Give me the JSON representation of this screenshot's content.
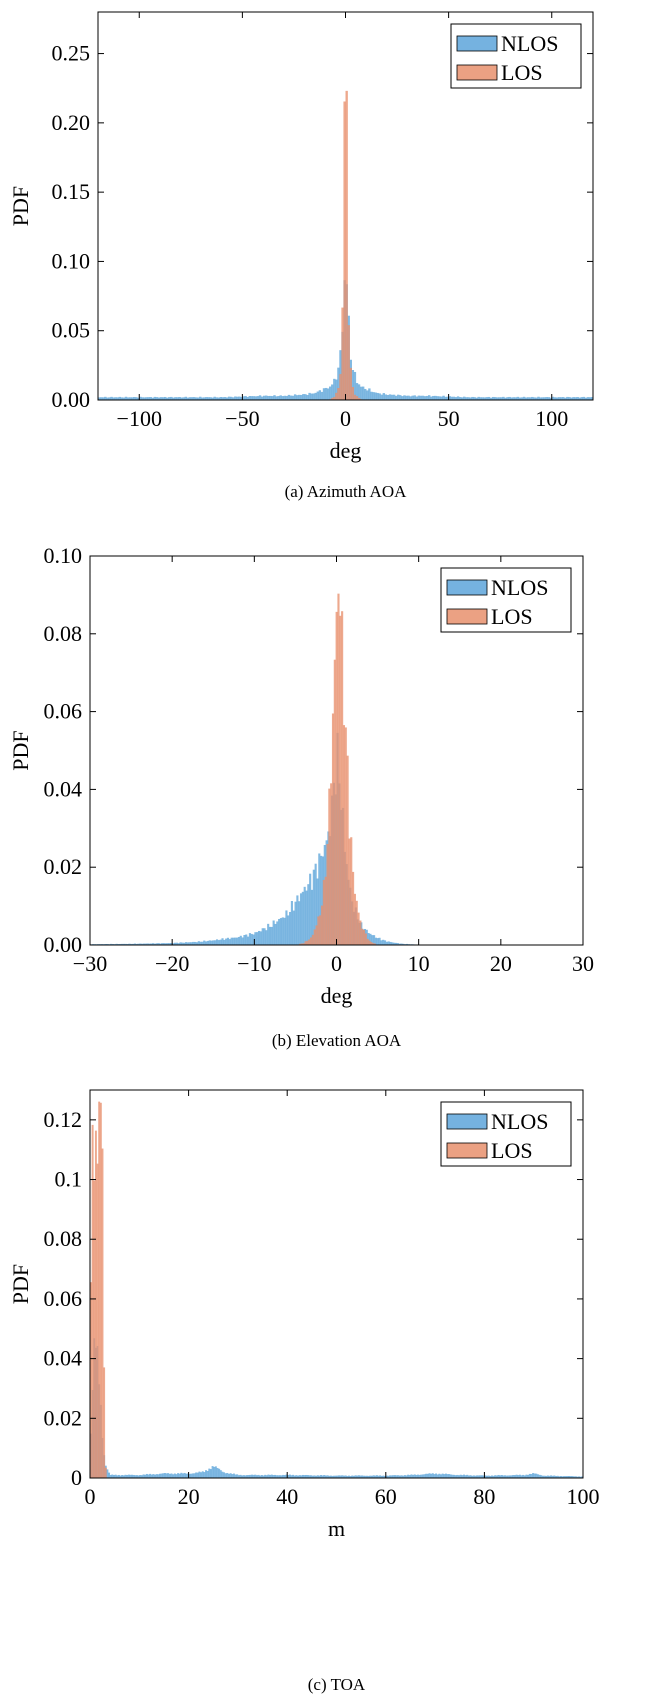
{
  "chart_data": [
    {
      "type": "bar",
      "subtype": "histogram",
      "caption": "(a) Azimuth AOA",
      "title": "",
      "xlabel": "deg",
      "ylabel": "PDF",
      "xlim": [
        -120,
        120
      ],
      "ylim": [
        0,
        0.28
      ],
      "xticks": [
        "−100",
        "−50",
        "0",
        "50",
        "100"
      ],
      "yticks": [
        "0.00",
        "0.05",
        "0.10",
        "0.15",
        "0.20",
        "0.25"
      ],
      "legend": {
        "position": "top-right",
        "entries": [
          "NLOS",
          "LOS"
        ]
      },
      "colors": {
        "NLOS": "#5da5da",
        "LOS": "#e8906d"
      },
      "series": [
        {
          "name": "NLOS",
          "x": [
            -120,
            -100,
            -80,
            -60,
            -40,
            -30,
            -20,
            -15,
            -10,
            -7,
            -5,
            -3,
            -2,
            -1,
            0,
            1,
            2,
            3,
            5,
            7,
            10,
            15,
            20,
            30,
            40,
            60,
            80,
            100,
            120
          ],
          "y": [
            0.002,
            0.002,
            0.002,
            0.002,
            0.003,
            0.003,
            0.004,
            0.005,
            0.008,
            0.01,
            0.015,
            0.025,
            0.04,
            0.07,
            0.1,
            0.07,
            0.04,
            0.025,
            0.015,
            0.01,
            0.008,
            0.005,
            0.004,
            0.003,
            0.003,
            0.002,
            0.002,
            0.002,
            0.002
          ]
        },
        {
          "name": "LOS",
          "x": [
            -8,
            -5,
            -4,
            -3,
            -2,
            -1.5,
            -1,
            -0.5,
            0,
            0.5,
            1,
            1.5,
            2,
            3,
            4,
            5,
            8
          ],
          "y": [
            0.0,
            0.003,
            0.006,
            0.012,
            0.03,
            0.06,
            0.12,
            0.22,
            0.255,
            0.22,
            0.12,
            0.06,
            0.03,
            0.012,
            0.006,
            0.003,
            0.0
          ]
        }
      ]
    },
    {
      "type": "bar",
      "subtype": "histogram",
      "caption": "(b) Elevation AOA",
      "title": "",
      "xlabel": "deg",
      "ylabel": "PDF",
      "xlim": [
        -30,
        30
      ],
      "ylim": [
        0,
        0.1
      ],
      "xticks": [
        "−30",
        "−20",
        "−10",
        "0",
        "10",
        "20",
        "30"
      ],
      "yticks": [
        "0.00",
        "0.02",
        "0.04",
        "0.06",
        "0.08",
        "0.10"
      ],
      "legend": {
        "position": "top-right",
        "entries": [
          "NLOS",
          "LOS"
        ]
      },
      "colors": {
        "NLOS": "#5da5da",
        "LOS": "#e8906d"
      },
      "series": [
        {
          "name": "NLOS",
          "x": [
            -30,
            -25,
            -20,
            -17,
            -15,
            -12,
            -10,
            -8,
            -6,
            -5,
            -4,
            -3,
            -2,
            -1,
            -0.5,
            0,
            0.5,
            1,
            1.5,
            2,
            3,
            4,
            5,
            6,
            7,
            8,
            10,
            15,
            20,
            30
          ],
          "y": [
            0.0002,
            0.0003,
            0.0005,
            0.0008,
            0.0012,
            0.002,
            0.003,
            0.005,
            0.008,
            0.011,
            0.014,
            0.017,
            0.022,
            0.028,
            0.036,
            0.049,
            0.04,
            0.025,
            0.016,
            0.01,
            0.005,
            0.003,
            0.0018,
            0.001,
            0.0006,
            0.0003,
            0.0001,
            0.0,
            0.0,
            0.0
          ]
        },
        {
          "name": "LOS",
          "x": [
            -5,
            -4,
            -3,
            -2,
            -1.5,
            -1,
            -0.5,
            0,
            0.2,
            0.5,
            1,
            1.5,
            2,
            2.5,
            3,
            4,
            5
          ],
          "y": [
            0.0,
            0.0005,
            0.002,
            0.008,
            0.015,
            0.03,
            0.055,
            0.085,
            0.094,
            0.085,
            0.06,
            0.035,
            0.018,
            0.01,
            0.005,
            0.001,
            0.0
          ]
        }
      ]
    },
    {
      "type": "bar",
      "subtype": "histogram",
      "caption": "(c) TOA",
      "title": "",
      "xlabel": "m",
      "ylabel": "PDF",
      "xlim": [
        0,
        100
      ],
      "ylim": [
        0,
        0.13
      ],
      "xticks": [
        "0",
        "20",
        "40",
        "60",
        "80",
        "100"
      ],
      "yticks": [
        "0",
        "0.02",
        "0.04",
        "0.06",
        "0.08",
        "0.1",
        "0.12"
      ],
      "legend": {
        "position": "top-right",
        "entries": [
          "NLOS",
          "LOS"
        ]
      },
      "colors": {
        "NLOS": "#5da5da",
        "LOS": "#e8906d"
      },
      "series": [
        {
          "name": "NLOS",
          "x": [
            0,
            0.5,
            1,
            1.5,
            2,
            2.5,
            3,
            4,
            10,
            15,
            20,
            23,
            25,
            27,
            30,
            40,
            50,
            60,
            65,
            70,
            75,
            80,
            88,
            90,
            92,
            100
          ],
          "y": [
            0.005,
            0.03,
            0.045,
            0.04,
            0.03,
            0.015,
            0.005,
            0.001,
            0.001,
            0.0015,
            0.0015,
            0.002,
            0.004,
            0.002,
            0.001,
            0.001,
            0.0008,
            0.0008,
            0.001,
            0.0015,
            0.001,
            0.0008,
            0.001,
            0.0015,
            0.0008,
            0.0005
          ]
        },
        {
          "name": "LOS",
          "x": [
            0,
            0.3,
            0.6,
            1,
            1.3,
            1.6,
            2,
            2.2,
            2.5,
            2.8,
            3,
            3.5
          ],
          "y": [
            0.03,
            0.11,
            0.12,
            0.12,
            0.115,
            0.118,
            0.12,
            0.123,
            0.1,
            0.04,
            0.005,
            0.0
          ]
        }
      ]
    }
  ]
}
